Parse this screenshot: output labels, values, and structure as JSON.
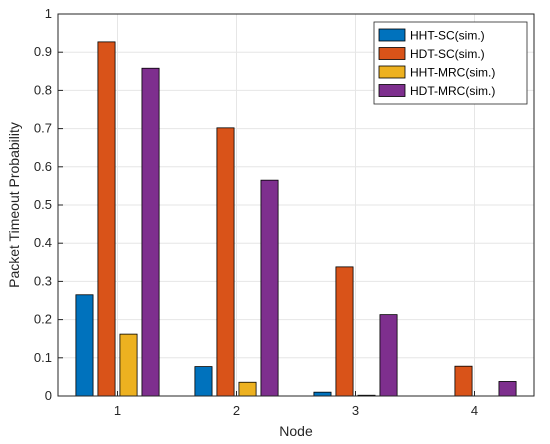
{
  "chart_data": {
    "type": "bar",
    "xlabel": "Node",
    "ylabel": "Packet Timeout Probability",
    "categories": [
      "1",
      "2",
      "3",
      "4"
    ],
    "ylim": [
      0,
      1
    ],
    "yticks": [
      "0",
      "0.1",
      "0.2",
      "0.3",
      "0.4",
      "0.5",
      "0.6",
      "0.7",
      "0.8",
      "0.9",
      "1"
    ],
    "grid": true,
    "legend_position": "top-right",
    "series": [
      {
        "name": "HHT-SC(sim.)",
        "color": "#0072BD",
        "values": [
          0.265,
          0.077,
          0.01,
          0.0
        ]
      },
      {
        "name": "HDT-SC(sim.)",
        "color": "#D95319",
        "values": [
          0.927,
          0.702,
          0.338,
          0.078
        ]
      },
      {
        "name": "HHT-MRC(sim.)",
        "color": "#EDB120",
        "values": [
          0.162,
          0.036,
          0.002,
          0.0
        ]
      },
      {
        "name": "HDT-MRC(sim.)",
        "color": "#7E2F8E",
        "values": [
          0.858,
          0.565,
          0.213,
          0.038
        ]
      }
    ]
  }
}
